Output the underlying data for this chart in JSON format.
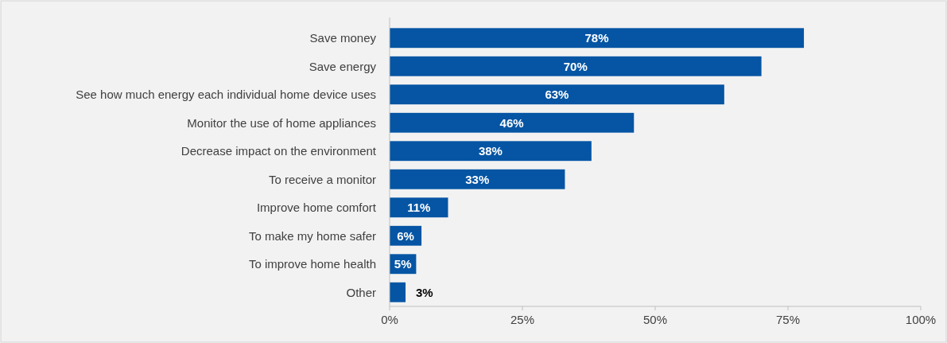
{
  "chart_data": {
    "type": "bar",
    "orientation": "horizontal",
    "categories": [
      "Save money",
      "Save energy",
      "See how much energy each individual home device uses",
      "Monitor the use of home appliances",
      "Decrease impact on the environment",
      "To receive a monitor",
      "Improve home comfort",
      "To make my home safer",
      "To improve home health",
      "Other"
    ],
    "values": [
      78,
      70,
      63,
      46,
      38,
      33,
      11,
      6,
      5,
      3
    ],
    "value_labels": [
      "78%",
      "70%",
      "63%",
      "46%",
      "38%",
      "33%",
      "11%",
      "6%",
      "5%",
      "3%"
    ],
    "color": "#0555a4",
    "xlim": [
      0,
      100
    ],
    "xticks": [
      {
        "value": 0,
        "label": "0%"
      },
      {
        "value": 25,
        "label": "25%"
      },
      {
        "value": 50,
        "label": "50%"
      },
      {
        "value": 75,
        "label": "75%"
      },
      {
        "value": 100,
        "label": "100%"
      }
    ],
    "grid": false
  }
}
